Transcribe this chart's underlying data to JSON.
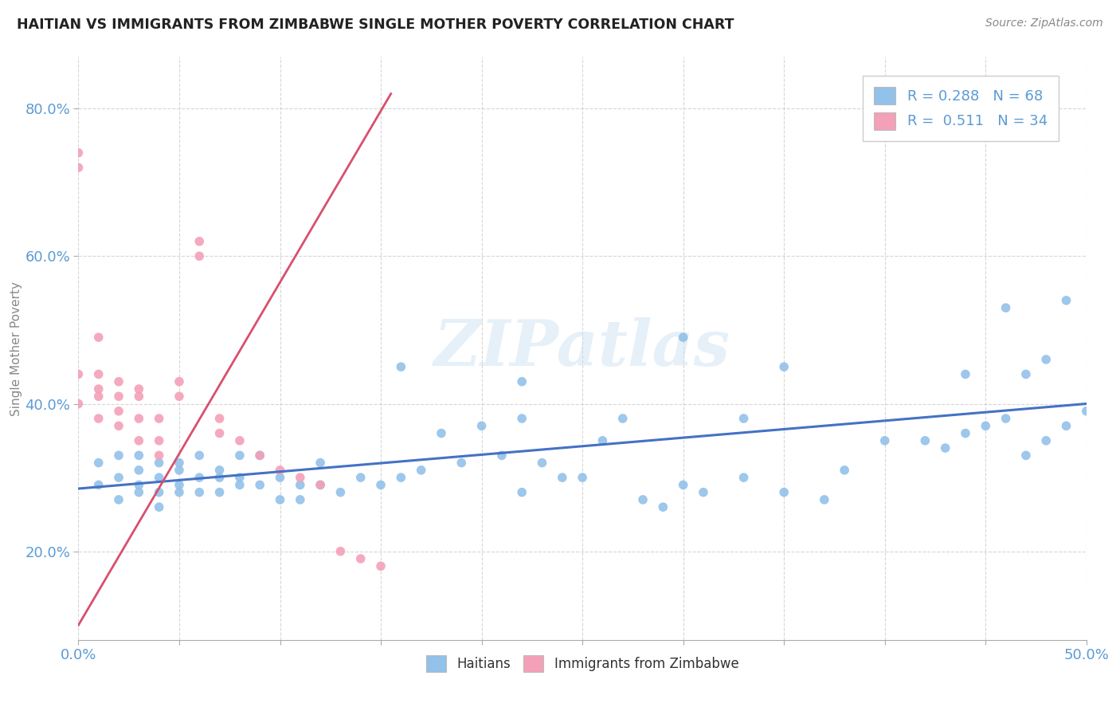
{
  "title": "HAITIAN VS IMMIGRANTS FROM ZIMBABWE SINGLE MOTHER POVERTY CORRELATION CHART",
  "source": "Source: ZipAtlas.com",
  "ylabel": "Single Mother Poverty",
  "xlim": [
    0.0,
    0.5
  ],
  "ylim": [
    0.08,
    0.87
  ],
  "xticks": [
    0.0,
    0.05,
    0.1,
    0.15,
    0.2,
    0.25,
    0.3,
    0.35,
    0.4,
    0.45,
    0.5
  ],
  "yticks": [
    0.2,
    0.4,
    0.6,
    0.8
  ],
  "haitian_color": "#92c1e9",
  "zimbabwe_color": "#f4a0b8",
  "haitian_line_color": "#4472c4",
  "zimbabwe_line_color": "#d94f6e",
  "R_haitian": 0.288,
  "N_haitian": 68,
  "R_zimbabwe": 0.511,
  "N_zimbabwe": 34,
  "watermark": "ZIPatlas",
  "haitian_line_x0": 0.0,
  "haitian_line_y0": 0.285,
  "haitian_line_x1": 0.5,
  "haitian_line_y1": 0.4,
  "zimbabwe_line_x0": 0.0,
  "zimbabwe_line_y0": 0.1,
  "zimbabwe_line_x1": 0.155,
  "zimbabwe_line_y1": 0.82,
  "haitian_x": [
    0.01,
    0.01,
    0.02,
    0.02,
    0.02,
    0.03,
    0.03,
    0.03,
    0.03,
    0.04,
    0.04,
    0.04,
    0.04,
    0.05,
    0.05,
    0.05,
    0.05,
    0.06,
    0.06,
    0.06,
    0.07,
    0.07,
    0.07,
    0.08,
    0.08,
    0.08,
    0.09,
    0.09,
    0.1,
    0.1,
    0.11,
    0.11,
    0.12,
    0.12,
    0.13,
    0.14,
    0.15,
    0.16,
    0.17,
    0.18,
    0.19,
    0.2,
    0.21,
    0.22,
    0.22,
    0.23,
    0.24,
    0.25,
    0.26,
    0.27,
    0.28,
    0.29,
    0.3,
    0.31,
    0.33,
    0.35,
    0.37,
    0.38,
    0.4,
    0.42,
    0.43,
    0.44,
    0.45,
    0.46,
    0.47,
    0.48,
    0.49,
    0.5
  ],
  "haitian_y": [
    0.29,
    0.32,
    0.3,
    0.27,
    0.33,
    0.28,
    0.31,
    0.29,
    0.33,
    0.28,
    0.32,
    0.3,
    0.26,
    0.29,
    0.32,
    0.28,
    0.31,
    0.3,
    0.33,
    0.28,
    0.3,
    0.28,
    0.31,
    0.3,
    0.33,
    0.29,
    0.29,
    0.33,
    0.3,
    0.27,
    0.29,
    0.27,
    0.32,
    0.29,
    0.28,
    0.3,
    0.29,
    0.3,
    0.31,
    0.36,
    0.32,
    0.37,
    0.33,
    0.28,
    0.38,
    0.32,
    0.3,
    0.3,
    0.35,
    0.38,
    0.27,
    0.26,
    0.29,
    0.28,
    0.3,
    0.28,
    0.27,
    0.31,
    0.35,
    0.35,
    0.34,
    0.36,
    0.37,
    0.38,
    0.33,
    0.35,
    0.37,
    0.39
  ],
  "haitian_outlier_x": [
    0.16,
    0.22,
    0.3,
    0.33,
    0.35,
    0.44,
    0.46,
    0.47,
    0.48,
    0.49
  ],
  "haitian_outlier_y": [
    0.45,
    0.43,
    0.49,
    0.38,
    0.45,
    0.44,
    0.53,
    0.44,
    0.46,
    0.54
  ],
  "zimbabwe_x": [
    0.0,
    0.0,
    0.0,
    0.0,
    0.01,
    0.01,
    0.01,
    0.01,
    0.01,
    0.02,
    0.02,
    0.02,
    0.02,
    0.03,
    0.03,
    0.03,
    0.03,
    0.04,
    0.04,
    0.04,
    0.05,
    0.05,
    0.06,
    0.06,
    0.07,
    0.07,
    0.08,
    0.09,
    0.1,
    0.11,
    0.12,
    0.13,
    0.14,
    0.15
  ],
  "zimbabwe_y": [
    0.74,
    0.72,
    0.44,
    0.4,
    0.49,
    0.44,
    0.42,
    0.41,
    0.38,
    0.43,
    0.41,
    0.39,
    0.37,
    0.42,
    0.41,
    0.38,
    0.35,
    0.38,
    0.35,
    0.33,
    0.43,
    0.41,
    0.62,
    0.6,
    0.38,
    0.36,
    0.35,
    0.33,
    0.31,
    0.3,
    0.29,
    0.2,
    0.19,
    0.18
  ]
}
